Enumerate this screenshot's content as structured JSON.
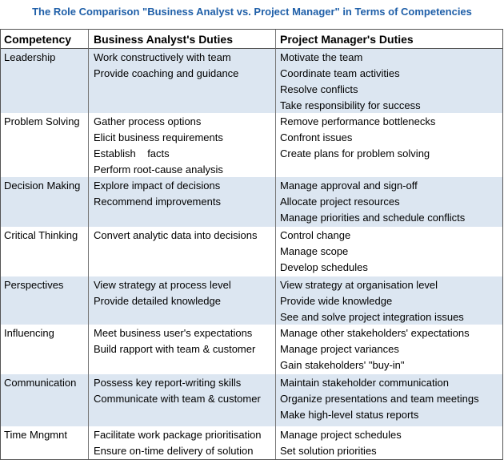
{
  "title": "The Role Comparison \"Business Analyst vs. Project Manager\" in Terms of Competencies",
  "table": {
    "header": [
      "Competency",
      "Business Analyst's Duties",
      "Project Manager's Duties"
    ],
    "rows": [
      {
        "competency": "Leadership",
        "ba": [
          "Work constructively with team",
          "Provide coaching and guidance"
        ],
        "pm": [
          "Motivate the team",
          "Coordinate team activities",
          "Resolve conflicts",
          "Take responsibility for success"
        ]
      },
      {
        "competency": "Problem Solving",
        "ba": [
          "Gather process options",
          "Elicit business requirements",
          "Establish    facts",
          "Perform root-cause analysis"
        ],
        "pm": [
          "Remove performance bottlenecks",
          "Confront issues",
          "Create plans for problem solving"
        ]
      },
      {
        "competency": "Decision Making",
        "ba": [
          "Explore impact of decisions",
          "Recommend improvements"
        ],
        "pm": [
          "Manage approval and sign-off",
          "Allocate project resources",
          "Manage priorities and schedule conflicts"
        ]
      },
      {
        "competency": "Critical Thinking",
        "ba": [
          "Convert analytic data into decisions"
        ],
        "pm": [
          "Control change",
          "Manage scope",
          "Develop schedules"
        ]
      },
      {
        "competency": "Perspectives",
        "ba": [
          "View strategy at process level",
          "Provide detailed knowledge"
        ],
        "pm": [
          "View strategy at organisation level",
          "Provide wide knowledge",
          "See and solve project integration issues"
        ]
      },
      {
        "competency": "Influencing",
        "ba": [
          "Meet business user's expectations",
          "Build rapport with team & customer"
        ],
        "pm": [
          "Manage other stakeholders' expectations",
          "Manage project variances",
          "Gain stakeholders' \"buy-in\""
        ]
      },
      {
        "competency": "Communication",
        "ba": [
          "Possess key report-writing skills",
          "Communicate with team & customer"
        ],
        "pm": [
          "Maintain stakeholder communication",
          "Organize presentations and team meetings",
          "Make high-level status reports"
        ]
      },
      {
        "competency": "Time Mngmnt",
        "ba": [
          "Facilitate work package prioritisation",
          "Ensure on-time delivery of solution"
        ],
        "pm": [
          "Manage project schedules",
          "Set solution priorities"
        ]
      }
    ]
  }
}
